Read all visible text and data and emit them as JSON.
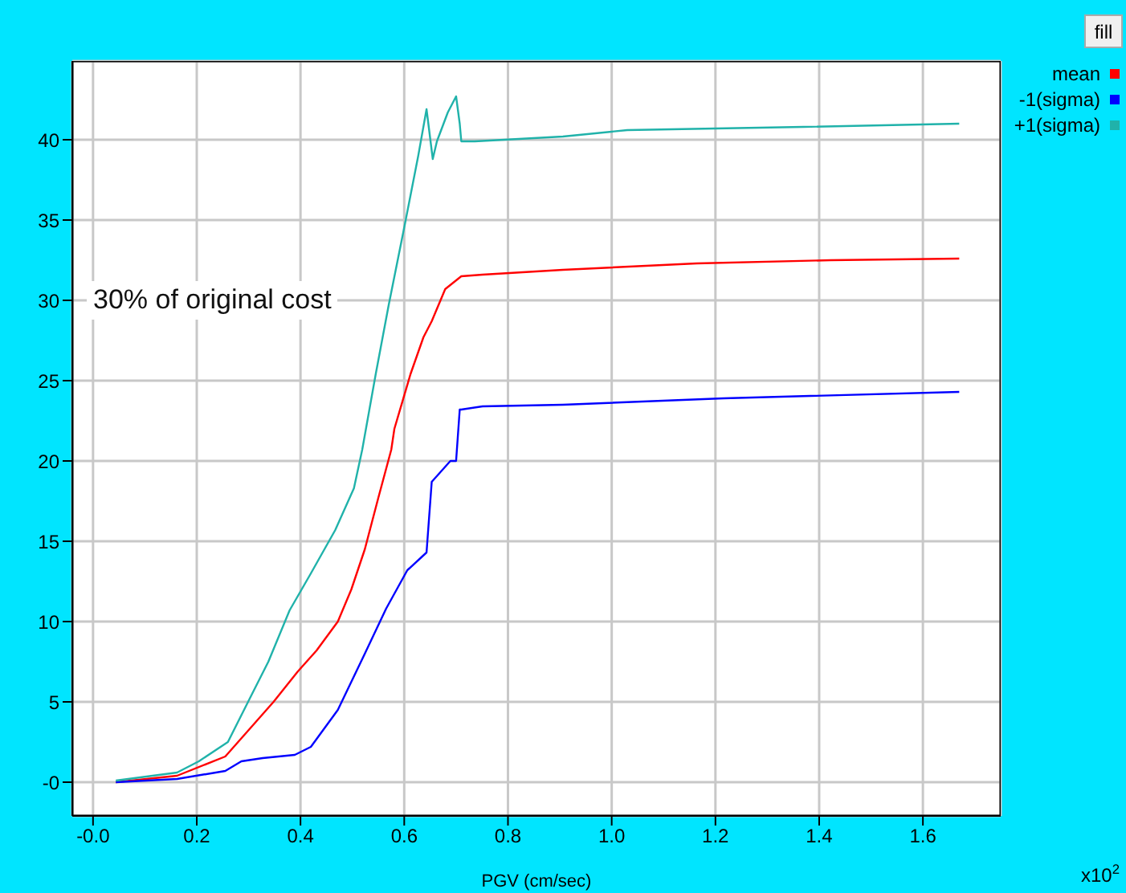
{
  "chart_data": {
    "type": "line",
    "xlabel": "PGV (cm/sec)",
    "annotations": [
      "30% of original cost",
      "x10$^{2}$",
      "fill"
    ],
    "xlim": [
      -0.04,
      1.75
    ],
    "xticks": [
      {
        "value": 0,
        "label": "-0.0"
      },
      0.2,
      0.4,
      0.6,
      0.8,
      {
        "value": 1,
        "label": "1.0"
      },
      1.2,
      1.4,
      1.6
    ],
    "ylim": [
      -2.1,
      44.9
    ],
    "yticks": [
      {
        "value": 0,
        "label": "-0"
      },
      5,
      10,
      15,
      20,
      25,
      30,
      35,
      40
    ],
    "grid": true,
    "legend": "top right",
    "marker": "none",
    "line_style": "solid",
    "series": [
      {
        "name": "mean",
        "color": "#ff0000",
        "x": [
          0.044,
          0.162,
          0.255,
          0.307,
          0.348,
          0.395,
          0.431,
          0.472,
          0.498,
          0.524,
          0.55,
          0.575,
          0.581,
          0.612,
          0.637,
          0.653,
          0.679,
          0.71,
          0.751,
          0.906,
          1.164,
          1.422,
          1.67
        ],
        "values": [
          0,
          0.4,
          1.6,
          3.5,
          5,
          6.9,
          8.2,
          10,
          12,
          14.5,
          17.7,
          20.7,
          22,
          25.4,
          27.7,
          28.7,
          30.7,
          31.5,
          31.6,
          31.9,
          32.3,
          32.5,
          32.6
        ]
      },
      {
        "name": "-1(sigma)",
        "color": "#0000ff",
        "x": [
          0.044,
          0.162,
          0.255,
          0.286,
          0.327,
          0.389,
          0.42,
          0.472,
          0.524,
          0.565,
          0.606,
          0.643,
          0.653,
          0.689,
          0.7,
          0.707,
          0.71,
          0.751,
          0.906,
          1.216,
          1.67
        ],
        "values": [
          0,
          0.2,
          0.7,
          1.3,
          1.5,
          1.7,
          2.2,
          4.5,
          8,
          10.8,
          13.2,
          14.3,
          18.7,
          20,
          20,
          23.2,
          23.2,
          23.4,
          23.5,
          23.9,
          24.3
        ]
      },
      {
        "name": "+1(sigma)",
        "color": "#20b2aa",
        "x": [
          0.044,
          0.162,
          0.204,
          0.26,
          0.302,
          0.338,
          0.379,
          0.42,
          0.467,
          0.503,
          0.519,
          0.545,
          0.57,
          0.601,
          0.627,
          0.643,
          0.655,
          0.663,
          0.684,
          0.7,
          0.707,
          0.71,
          0.736,
          0.906,
          1.03,
          1.37,
          1.67
        ],
        "values": [
          0.1,
          0.6,
          1.3,
          2.5,
          5.2,
          7.5,
          10.7,
          13,
          15.7,
          18.3,
          20.7,
          25.4,
          29.7,
          34.7,
          39,
          41.9,
          38.8,
          39.9,
          41.7,
          42.7,
          41,
          39.9,
          39.9,
          40.2,
          40.6,
          40.8,
          41
        ]
      }
    ]
  }
}
